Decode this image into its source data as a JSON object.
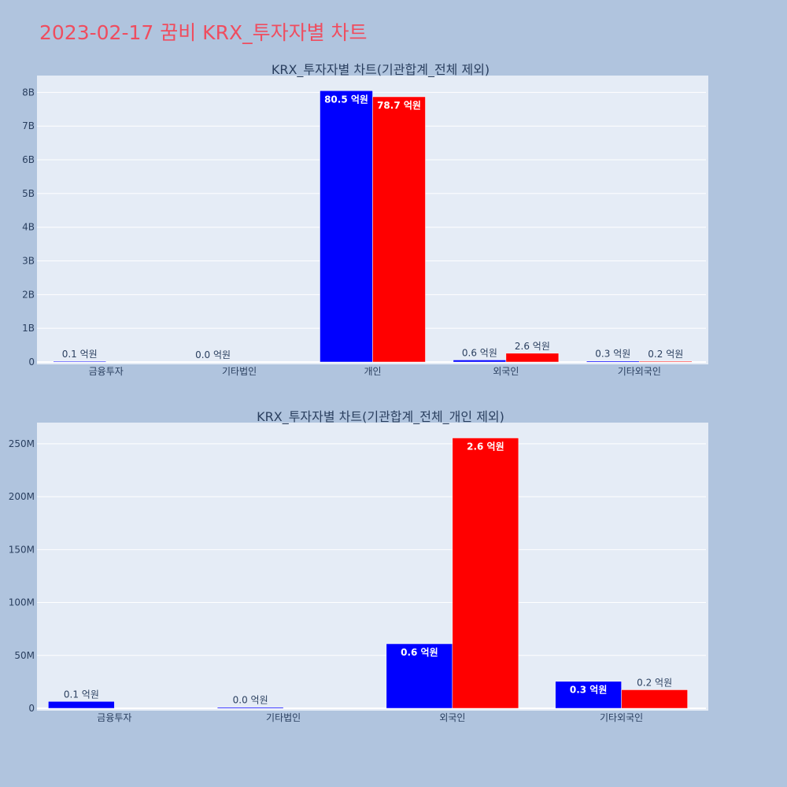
{
  "title": "2023-02-17 꿈비 KRX_투자자별 차트",
  "colors": {
    "background": "#b0c4de",
    "plot_bg": "#e5ecf6",
    "buy": "#0000ff",
    "sell": "#ff0000",
    "title": "#ef4d5f",
    "text": "#2a3f5f"
  },
  "chart_data": [
    {
      "type": "bar",
      "title": "KRX_투자자별 차트(기관합계_전체 제외)",
      "categories": [
        "금융투자",
        "기타법인",
        "개인",
        "외국인",
        "기타외국인"
      ],
      "series": [
        {
          "color": "#0000ff",
          "values": [
            10000000,
            0,
            8050000000,
            60000000,
            30000000
          ],
          "labels": [
            "0.1 억원",
            "0.0 억원",
            "80.5 억원",
            "0.6 억원",
            "0.3 억원"
          ]
        },
        {
          "color": "#ff0000",
          "values": [
            0,
            0,
            7870000000,
            260000000,
            20000000
          ],
          "labels": [
            "",
            "",
            "78.7 억원",
            "2.6 억원",
            "0.2 억원"
          ]
        }
      ],
      "ylim": [
        0,
        8500000000
      ],
      "yticks": [
        0,
        1000000000,
        2000000000,
        3000000000,
        4000000000,
        5000000000,
        6000000000,
        7000000000,
        8000000000
      ],
      "ytick_labels": [
        "0",
        "1B",
        "2B",
        "3B",
        "4B",
        "5B",
        "6B",
        "7B",
        "8B"
      ],
      "grid": true
    },
    {
      "type": "bar",
      "title": "KRX_투자자별 차트(기관합계_전체_개인 제외)",
      "categories": [
        "금융투자",
        "기타법인",
        "외국인",
        "기타외국인"
      ],
      "series": [
        {
          "color": "#0000ff",
          "values": [
            6500000,
            1000000,
            61000000,
            25500000
          ],
          "labels": [
            "0.1 억원",
            "0.0 억원",
            "0.6 억원",
            "0.3 억원"
          ]
        },
        {
          "color": "#ff0000",
          "values": [
            0,
            0,
            255500000,
            17500000
          ],
          "labels": [
            "",
            "",
            "2.6 억원",
            "0.2 억원"
          ]
        }
      ],
      "ylim": [
        0,
        270000000
      ],
      "yticks": [
        0,
        50000000,
        100000000,
        150000000,
        200000000,
        250000000
      ],
      "ytick_labels": [
        "0",
        "50M",
        "100M",
        "150M",
        "200M",
        "250M"
      ],
      "grid": true
    }
  ]
}
